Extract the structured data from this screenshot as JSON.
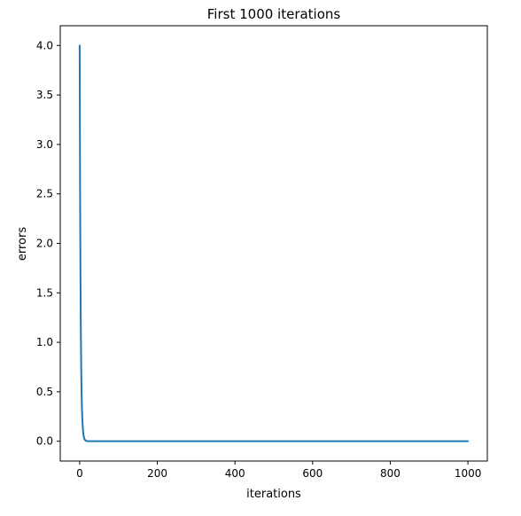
{
  "chart_data": {
    "type": "line",
    "title": "First 1000 iterations",
    "xlabel": "iterations",
    "ylabel": "errors",
    "xlim": [
      -50,
      1050
    ],
    "ylim": [
      -0.2,
      4.2
    ],
    "x_ticks": [
      0,
      200,
      400,
      600,
      800,
      1000
    ],
    "x_tick_labels": [
      "0",
      "200",
      "400",
      "600",
      "800",
      "1000"
    ],
    "y_ticks": [
      0.0,
      0.5,
      1.0,
      1.5,
      2.0,
      2.5,
      3.0,
      3.5,
      4.0
    ],
    "y_tick_labels": [
      "0.0",
      "0.5",
      "1.0",
      "1.5",
      "2.0",
      "2.5",
      "3.0",
      "3.5",
      "4.0"
    ],
    "grid": false,
    "legend": "none",
    "series": [
      {
        "color": "#1f77b4",
        "x": [
          0,
          1,
          2,
          3,
          4,
          5,
          6,
          7,
          8,
          10,
          12,
          14,
          16,
          20,
          25,
          30,
          40,
          60,
          100,
          200,
          400,
          600,
          800,
          1000
        ],
        "y": [
          4.0,
          2.62,
          1.72,
          1.13,
          0.74,
          0.48,
          0.32,
          0.21,
          0.14,
          0.06,
          0.025,
          0.012,
          0.005,
          0.001,
          0.0,
          0.0,
          0.0,
          0.0,
          0.0,
          0.0,
          0.0,
          0.0,
          0.0,
          0.0
        ]
      }
    ]
  }
}
